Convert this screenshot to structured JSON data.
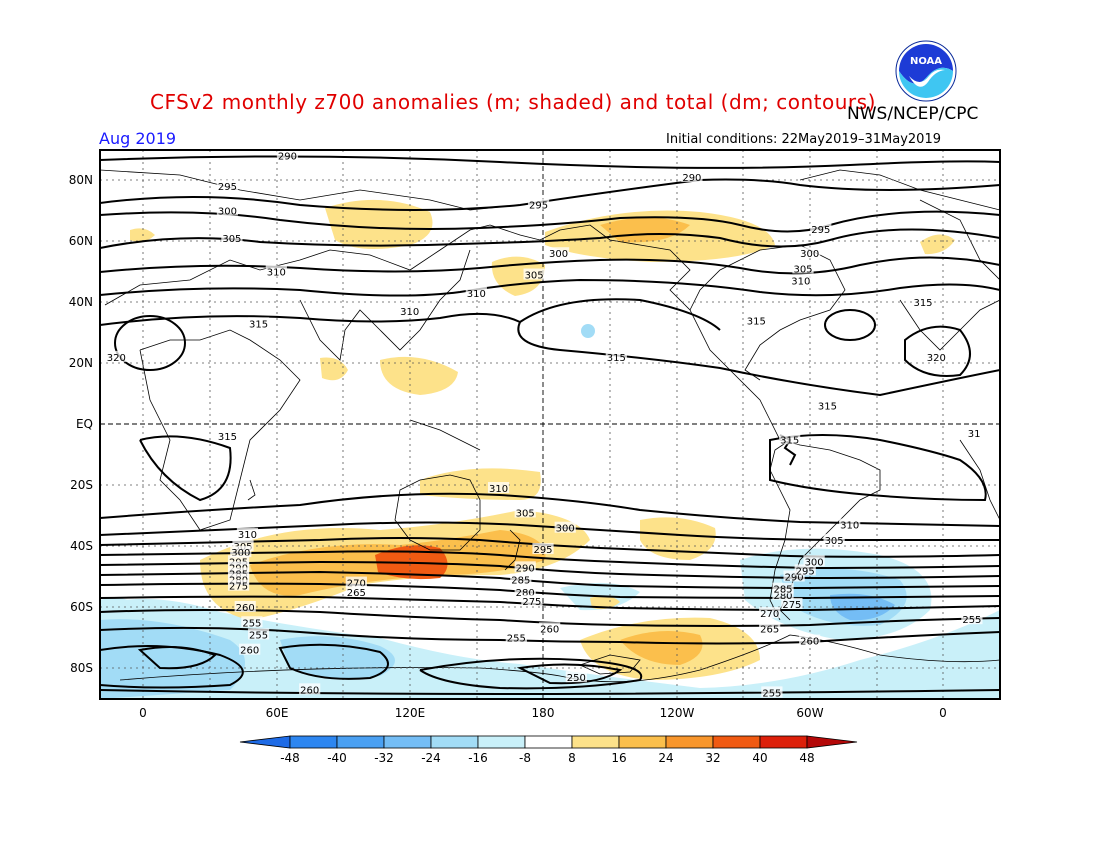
{
  "title": "CFSv2 monthly z700 anomalies (m; shaded) and total (dm; contours)",
  "agency": "NWS/NCEP/CPC",
  "logo_text": "NOAA",
  "valid_period": "Aug 2019",
  "initial_conditions": "Initial conditions: 22May2019–31May2019",
  "lat_labels": [
    "80N",
    "60N",
    "40N",
    "20N",
    "EQ",
    "20S",
    "40S",
    "60S",
    "80S"
  ],
  "lon_labels": [
    "0",
    "60E",
    "120E",
    "180",
    "120W",
    "60W",
    "0"
  ],
  "colorbar": {
    "ticks": [
      "-48",
      "-40",
      "-32",
      "-24",
      "-16",
      "-8",
      "8",
      "16",
      "24",
      "32",
      "40",
      "48"
    ],
    "colors": [
      "#1e6be6",
      "#2d86f0",
      "#4aa0f2",
      "#74bdf5",
      "#a2dcf6",
      "#c9f0f9",
      "#ffffff",
      "#fde28a",
      "#fbbf4c",
      "#f8962c",
      "#f05a12",
      "#dd200a",
      "#b40808"
    ]
  },
  "contour_labels": [
    {
      "text": "290",
      "lon": 65,
      "lat": 88
    },
    {
      "text": "295",
      "lon": 38,
      "lat": 78
    },
    {
      "text": "300",
      "lon": 38,
      "lat": 70
    },
    {
      "text": "305",
      "lon": 40,
      "lat": 61
    },
    {
      "text": "310",
      "lon": 60,
      "lat": 50
    },
    {
      "text": "315",
      "lon": 52,
      "lat": 33
    },
    {
      "text": "320",
      "lon": -12,
      "lat": 22
    },
    {
      "text": "310",
      "lon": 120,
      "lat": 37
    },
    {
      "text": "310",
      "lon": 150,
      "lat": 43
    },
    {
      "text": "305",
      "lon": 176,
      "lat": 49
    },
    {
      "text": "300",
      "lon": 187,
      "lat": 56
    },
    {
      "text": "295",
      "lon": 178,
      "lat": 72
    },
    {
      "text": "290",
      "lon": 247,
      "lat": 81
    },
    {
      "text": "295",
      "lon": 305,
      "lat": 64
    },
    {
      "text": "300",
      "lon": 300,
      "lat": 56
    },
    {
      "text": "305",
      "lon": 297,
      "lat": 51
    },
    {
      "text": "310",
      "lon": 296,
      "lat": 47
    },
    {
      "text": "315",
      "lon": 276,
      "lat": 34
    },
    {
      "text": "315",
      "lon": 213,
      "lat": 22
    },
    {
      "text": "315",
      "lon": 351,
      "lat": 40
    },
    {
      "text": "320",
      "lon": 357,
      "lat": 22
    },
    {
      "text": "315",
      "lon": 308,
      "lat": 6
    },
    {
      "text": "315",
      "lon": 291,
      "lat": -5
    },
    {
      "text": "315",
      "lon": 38,
      "lat": -4
    },
    {
      "text": "310",
      "lon": 160,
      "lat": -21
    },
    {
      "text": "305",
      "lon": 172,
      "lat": -29
    },
    {
      "text": "300",
      "lon": 190,
      "lat": -34
    },
    {
      "text": "295",
      "lon": 180,
      "lat": -41
    },
    {
      "text": "290",
      "lon": 172,
      "lat": -47
    },
    {
      "text": "285",
      "lon": 170,
      "lat": -51
    },
    {
      "text": "280",
      "lon": 172,
      "lat": -55
    },
    {
      "text": "275",
      "lon": 175,
      "lat": -58
    },
    {
      "text": "310",
      "lon": 47,
      "lat": -36
    },
    {
      "text": "305",
      "lon": 45,
      "lat": -40
    },
    {
      "text": "300",
      "lon": 44,
      "lat": -42
    },
    {
      "text": "295",
      "lon": 43,
      "lat": -45
    },
    {
      "text": "290",
      "lon": 43,
      "lat": -47
    },
    {
      "text": "285",
      "lon": 43,
      "lat": -49
    },
    {
      "text": "280",
      "lon": 43,
      "lat": -51
    },
    {
      "text": "275",
      "lon": 43,
      "lat": -53
    },
    {
      "text": "270",
      "lon": 96,
      "lat": -52
    },
    {
      "text": "265",
      "lon": 96,
      "lat": -55
    },
    {
      "text": "260",
      "lon": 46,
      "lat": -60
    },
    {
      "text": "255",
      "lon": 49,
      "lat": -65
    },
    {
      "text": "255",
      "lon": 52,
      "lat": -69
    },
    {
      "text": "260",
      "lon": 48,
      "lat": -74
    },
    {
      "text": "260",
      "lon": 75,
      "lat": -87
    },
    {
      "text": "255",
      "lon": 168,
      "lat": -70
    },
    {
      "text": "260",
      "lon": 183,
      "lat": -67
    },
    {
      "text": "250",
      "lon": 195,
      "lat": -83
    },
    {
      "text": "255",
      "lon": 283,
      "lat": -88
    },
    {
      "text": "260",
      "lon": 300,
      "lat": -71
    },
    {
      "text": "265",
      "lon": 282,
      "lat": -67
    },
    {
      "text": "270",
      "lon": 282,
      "lat": -62
    },
    {
      "text": "275",
      "lon": 292,
      "lat": -59
    },
    {
      "text": "280",
      "lon": 288,
      "lat": -56
    },
    {
      "text": "285",
      "lon": 288,
      "lat": -54
    },
    {
      "text": "290",
      "lon": 293,
      "lat": -50
    },
    {
      "text": "295",
      "lon": 298,
      "lat": -48
    },
    {
      "text": "300",
      "lon": 302,
      "lat": -45
    },
    {
      "text": "305",
      "lon": 311,
      "lat": -38
    },
    {
      "text": "310",
      "lon": 318,
      "lat": -33
    },
    {
      "text": "255",
      "lon": 373,
      "lat": -64
    },
    {
      "text": "31",
      "lon": 374,
      "lat": -3
    }
  ]
}
